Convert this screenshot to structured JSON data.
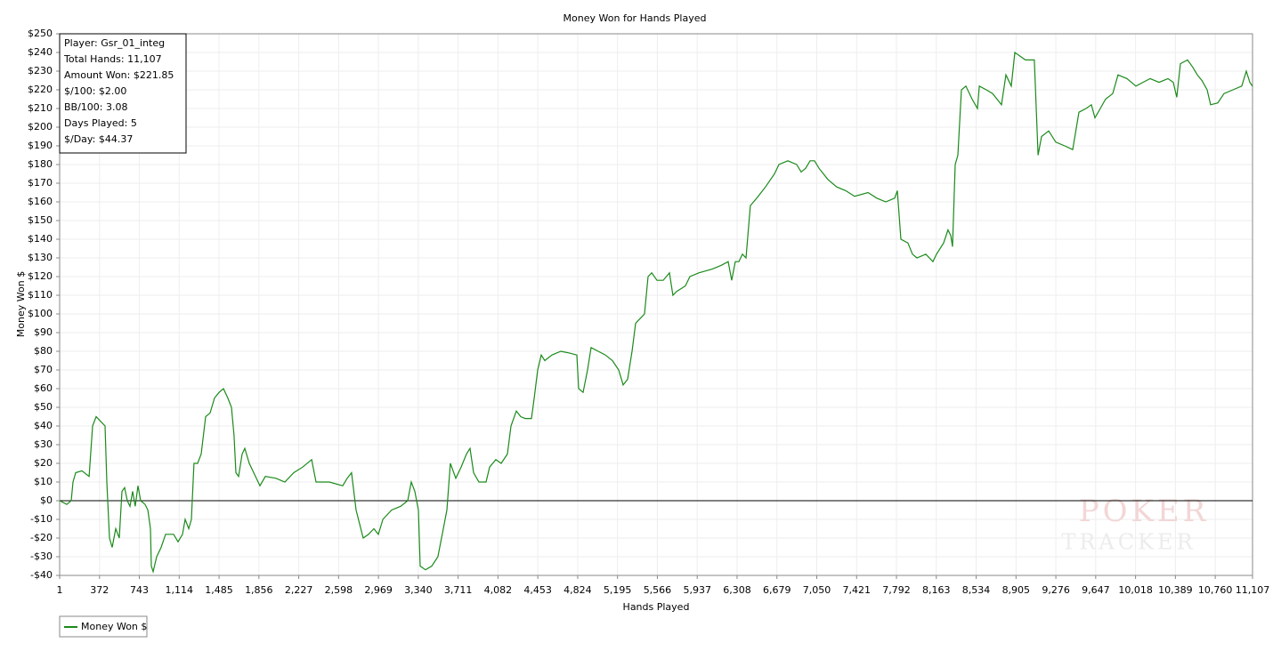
{
  "chart_data": {
    "type": "line",
    "title": "Money Won for Hands Played",
    "xlabel": "Hands Played",
    "ylabel": "Money Won $",
    "info_box": [
      "Player: Gsr_01_integ",
      "Total Hands: 11,107",
      "Amount Won: $221.85",
      "$/100: $2.00",
      "BB/100: 3.08",
      "Days Played: 5",
      "$/Day: $44.37"
    ],
    "watermark": [
      "POKER",
      "TRACKER"
    ],
    "grid": true,
    "legend": "bottom-left",
    "xlim": [
      1,
      11107
    ],
    "ylim": [
      -40,
      250
    ],
    "xticks": [
      {
        "value": 1,
        "label": "1"
      },
      {
        "value": 372,
        "label": "372"
      },
      {
        "value": 743,
        "label": "743"
      },
      {
        "value": 1114,
        "label": "1,114"
      },
      {
        "value": 1485,
        "label": "1,485"
      },
      {
        "value": 1856,
        "label": "1,856"
      },
      {
        "value": 2227,
        "label": "2,227"
      },
      {
        "value": 2598,
        "label": "2,598"
      },
      {
        "value": 2969,
        "label": "2,969"
      },
      {
        "value": 3340,
        "label": "3,340"
      },
      {
        "value": 3711,
        "label": "3,711"
      },
      {
        "value": 4082,
        "label": "4,082"
      },
      {
        "value": 4453,
        "label": "4,453"
      },
      {
        "value": 4824,
        "label": "4,824"
      },
      {
        "value": 5195,
        "label": "5,195"
      },
      {
        "value": 5566,
        "label": "5,566"
      },
      {
        "value": 5937,
        "label": "5,937"
      },
      {
        "value": 6308,
        "label": "6,308"
      },
      {
        "value": 6679,
        "label": "6,679"
      },
      {
        "value": 7050,
        "label": "7,050"
      },
      {
        "value": 7421,
        "label": "7,421"
      },
      {
        "value": 7792,
        "label": "7,792"
      },
      {
        "value": 8163,
        "label": "8,163"
      },
      {
        "value": 8534,
        "label": "8,534"
      },
      {
        "value": 8905,
        "label": "8,905"
      },
      {
        "value": 9276,
        "label": "9,276"
      },
      {
        "value": 9647,
        "label": "9,647"
      },
      {
        "value": 10018,
        "label": "10,018"
      },
      {
        "value": 10389,
        "label": "10,389"
      },
      {
        "value": 10760,
        "label": "10,760"
      },
      {
        "value": 11107,
        "label": "11,107"
      }
    ],
    "yticks": [
      {
        "value": -40,
        "label": "-$40"
      },
      {
        "value": -30,
        "label": "-$30"
      },
      {
        "value": -20,
        "label": "-$20"
      },
      {
        "value": -10,
        "label": "-$10"
      },
      {
        "value": 0,
        "label": "$0"
      },
      {
        "value": 10,
        "label": "$10"
      },
      {
        "value": 20,
        "label": "$20"
      },
      {
        "value": 30,
        "label": "$30"
      },
      {
        "value": 40,
        "label": "$40"
      },
      {
        "value": 50,
        "label": "$50"
      },
      {
        "value": 60,
        "label": "$60"
      },
      {
        "value": 70,
        "label": "$70"
      },
      {
        "value": 80,
        "label": "$80"
      },
      {
        "value": 90,
        "label": "$90"
      },
      {
        "value": 100,
        "label": "$100"
      },
      {
        "value": 110,
        "label": "$110"
      },
      {
        "value": 120,
        "label": "$120"
      },
      {
        "value": 130,
        "label": "$130"
      },
      {
        "value": 140,
        "label": "$140"
      },
      {
        "value": 150,
        "label": "$150"
      },
      {
        "value": 160,
        "label": "$160"
      },
      {
        "value": 170,
        "label": "$170"
      },
      {
        "value": 180,
        "label": "$180"
      },
      {
        "value": 190,
        "label": "$190"
      },
      {
        "value": 200,
        "label": "$200"
      },
      {
        "value": 210,
        "label": "$210"
      },
      {
        "value": 220,
        "label": "$220"
      },
      {
        "value": 230,
        "label": "$230"
      },
      {
        "value": 240,
        "label": "$240"
      },
      {
        "value": 250,
        "label": "$250"
      }
    ],
    "x": [
      1,
      67,
      109,
      125,
      150,
      208,
      275,
      308,
      341,
      374,
      424,
      440,
      465,
      490,
      523,
      556,
      581,
      606,
      631,
      656,
      681,
      705,
      730,
      755,
      797,
      822,
      846,
      855,
      871,
      904,
      946,
      987,
      1062,
      1103,
      1145,
      1170,
      1203,
      1228,
      1252,
      1286,
      1319,
      1360,
      1402,
      1443,
      1485,
      1526,
      1567,
      1601,
      1625,
      1642,
      1667,
      1700,
      1725,
      1766,
      1808,
      1866,
      1916,
      2015,
      2098,
      2181,
      2264,
      2347,
      2388,
      2512,
      2637,
      2678,
      2719,
      2761,
      2827,
      2877,
      2927,
      2968,
      3010,
      3092,
      3175,
      3242,
      3275,
      3308,
      3341,
      3358,
      3407,
      3465,
      3523,
      3573,
      3606,
      3639,
      3689,
      3739,
      3789,
      3822,
      3855,
      3905,
      3971,
      4004,
      4062,
      4112,
      4170,
      4203,
      4253,
      4294,
      4336,
      4394,
      4419,
      4452,
      4485,
      4518,
      4584,
      4667,
      4750,
      4816,
      4833,
      4874,
      4916,
      4949,
      5015,
      5082,
      5148,
      5206,
      5247,
      5289,
      5330,
      5363,
      5413,
      5446,
      5479,
      5513,
      5562,
      5620,
      5678,
      5711,
      5745,
      5827,
      5869,
      5952,
      6076,
      6159,
      6225,
      6258,
      6292,
      6325,
      6358,
      6391,
      6432,
      6491,
      6532,
      6573,
      6656,
      6698,
      6781,
      6863,
      6905,
      6946,
      6988,
      7029,
      7071,
      7112,
      7154,
      7236,
      7319,
      7402,
      7527,
      7609,
      7692,
      7775,
      7800,
      7833,
      7899,
      7941,
      7982,
      8065,
      8132,
      8165,
      8231,
      8272,
      8297,
      8314,
      8339,
      8364,
      8397,
      8438,
      8496,
      8546,
      8563,
      8629,
      8687,
      8770,
      8811,
      8861,
      8894,
      8944,
      8993,
      9076,
      9110,
      9143,
      9209,
      9275,
      9358,
      9433,
      9491,
      9557,
      9607,
      9640,
      9690,
      9739,
      9806,
      9855,
      9938,
      10021,
      10087,
      10154,
      10237,
      10320,
      10369,
      10402,
      10436,
      10502,
      10552,
      10593,
      10635,
      10684,
      10717,
      10784,
      10842,
      10925,
      11007,
      11049,
      11082,
      11107
    ],
    "series": [
      {
        "name": "Money Won $",
        "color": "#1a8a1a",
        "values": [
          0,
          -2,
          0,
          10,
          15,
          16,
          13,
          40,
          45,
          43,
          40,
          10,
          -20,
          -25,
          -15,
          -20,
          5,
          7,
          0,
          -3,
          5,
          -3,
          8,
          0,
          -2,
          -5,
          -15,
          -35,
          -38,
          -30,
          -25,
          -18,
          -18,
          -22,
          -18,
          -10,
          -15,
          -10,
          20,
          20,
          25,
          45,
          47,
          55,
          58,
          60,
          55,
          50,
          35,
          15,
          13,
          25,
          28,
          20,
          15,
          8,
          13,
          12,
          10,
          15,
          18,
          22,
          10,
          10,
          8,
          12,
          15,
          -5,
          -20,
          -18,
          -15,
          -18,
          -10,
          -5,
          -3,
          0,
          10,
          5,
          -5,
          -35,
          -37,
          -35,
          -30,
          -15,
          -5,
          20,
          12,
          18,
          25,
          28,
          15,
          10,
          10,
          18,
          22,
          20,
          25,
          40,
          48,
          45,
          44,
          44,
          55,
          70,
          78,
          75,
          78,
          80,
          79,
          78,
          60,
          58,
          70,
          82,
          80,
          78,
          75,
          70,
          62,
          65,
          80,
          95,
          98,
          100,
          120,
          122,
          118,
          118,
          122,
          110,
          112,
          115,
          120,
          122,
          124,
          126,
          128,
          118,
          128,
          128,
          132,
          130,
          158,
          162,
          165,
          168,
          175,
          180,
          182,
          180,
          176,
          178,
          182,
          182,
          178,
          175,
          172,
          168,
          166,
          163,
          165,
          162,
          160,
          162,
          166,
          140,
          138,
          132,
          130,
          132,
          128,
          132,
          138,
          145,
          142,
          136,
          180,
          185,
          220,
          222,
          215,
          210,
          222,
          220,
          218,
          212,
          228,
          222,
          240,
          238,
          236,
          236,
          185,
          195,
          198,
          192,
          190,
          188,
          208,
          210,
          212,
          205,
          210,
          215,
          218,
          228,
          226,
          222,
          224,
          226,
          224,
          226,
          224,
          216,
          234,
          236,
          232,
          228,
          225,
          220,
          212,
          213,
          218,
          220,
          222,
          230,
          224,
          221.85
        ]
      }
    ]
  }
}
